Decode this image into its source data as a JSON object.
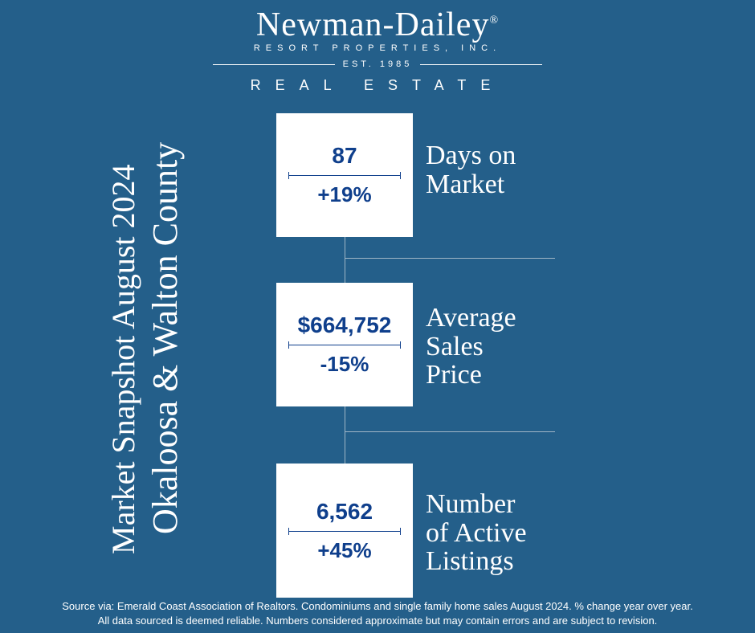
{
  "colors": {
    "background": "#245f8a",
    "card_bg": "#ffffff",
    "accent": "#0f3f8c",
    "line": "#a0b6c6",
    "text_light": "#ffffff"
  },
  "logo": {
    "main": "Newman-Dailey",
    "sub": "RESORT PROPERTIES, INC.",
    "est": "EST. 1985",
    "realty": "REAL ESTATE"
  },
  "title": {
    "line1": "Market Snapshot August 2024",
    "line2": "Okaloosa & Walton County",
    "line1_fontsize": 40,
    "line2_fontsize": 44
  },
  "metrics": [
    {
      "value": "87",
      "change": "+19%",
      "label": "Days on\nMarket",
      "value_fontsize": 28,
      "change_fontsize": 26,
      "label_fontsize": 34
    },
    {
      "value": "$664,752",
      "change": "-15%",
      "label": "Average\nSales\nPrice",
      "value_fontsize": 28,
      "change_fontsize": 26,
      "label_fontsize": 34
    },
    {
      "value": "6,562",
      "change": "+45%",
      "label": "Number\nof Active\nListings",
      "value_fontsize": 28,
      "change_fontsize": 26,
      "label_fontsize": 34
    }
  ],
  "footer": {
    "line1": "Source via: Emerald Coast Association of Realtors.  Condominiums and single family home sales August 2024.  % change year over year.",
    "line2": "All data sourced is deemed reliable.  Numbers considered approximate but may contain errors and are subject to revision."
  }
}
